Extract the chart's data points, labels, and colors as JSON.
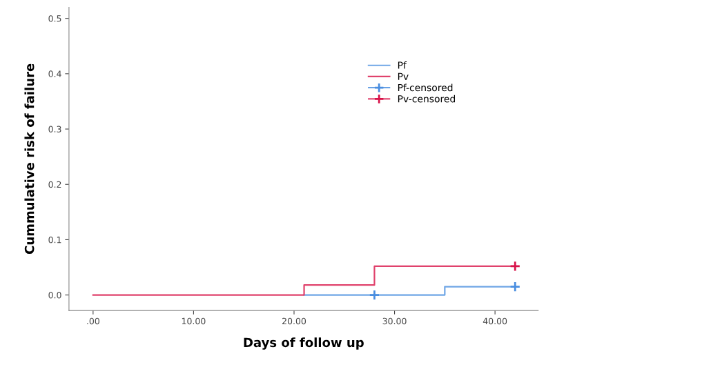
{
  "chart_data": {
    "type": "step",
    "xlabel": "Days of follow up",
    "ylabel": "Cummulative risk of failure",
    "xlim": [
      -2.4,
      44.3
    ],
    "xticks": [
      {
        "value": 0,
        "label": ".00"
      },
      {
        "value": 10,
        "label": "10.00"
      },
      {
        "value": 20,
        "label": "20.00"
      },
      {
        "value": 30,
        "label": "30.00"
      },
      {
        "value": 40,
        "label": "40.00"
      }
    ],
    "ylim": [
      -0.028,
      0.52
    ],
    "yticks": [
      {
        "value": 0,
        "label": "0.0"
      },
      {
        "value": 0.1,
        "label": "0.1"
      },
      {
        "value": 0.2,
        "label": "0.2"
      },
      {
        "value": 0.3,
        "label": "0.3"
      },
      {
        "value": 0.4,
        "label": "0.4"
      },
      {
        "value": 0.5,
        "label": "0.5"
      }
    ],
    "series": [
      {
        "name": "Pf",
        "color": "#6fa6e6",
        "x": [
          21,
          35,
          42
        ],
        "values": [
          0,
          0.015,
          0.015
        ]
      },
      {
        "name": "Pv",
        "color": "#e0426c",
        "x": [
          0,
          21,
          28,
          42
        ],
        "values": [
          0,
          0.018,
          0.052,
          0.052
        ]
      },
      {
        "name": "Pf-censored",
        "type": "scatter",
        "marker": "cross",
        "color": "#4a8ee0",
        "x": [
          28,
          42
        ],
        "values": [
          0,
          0.015
        ]
      },
      {
        "name": "Pv-censored",
        "type": "scatter",
        "marker": "cross",
        "color": "#d8134a",
        "x": [
          42
        ],
        "values": [
          0.052
        ]
      }
    ],
    "legend": "top right",
    "grid": false
  }
}
